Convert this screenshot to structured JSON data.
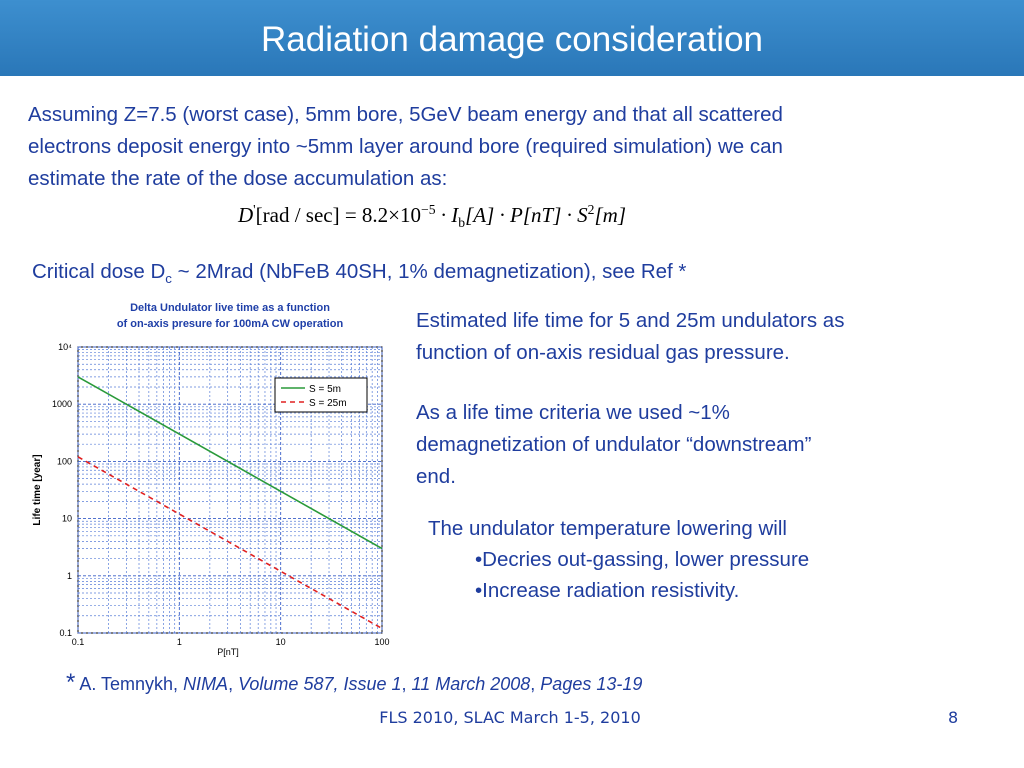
{
  "slide": {
    "title": "Radiation damage consideration",
    "intro": [
      "Assuming Z=7.5 (worst case), 5mm bore, 5GeV beam energy and that all scattered",
      "electrons deposit  energy into ~5mm layer around bore (required simulation) we can",
      "estimate the rate of the dose accumulation as:"
    ],
    "formula": [
      "D",
      "'",
      "[rad / sec] = 8.2×10",
      "−5",
      " · I",
      "b",
      "[A] · P[nT] · S",
      "2",
      "[m]"
    ],
    "critical_dose": [
      "Critical dose D",
      "c",
      " ~ 2Mrad (NbFeB 40SH, 1% demagnetization), see Ref *"
    ],
    "paragraph_1": [
      "Estimated life time for 5 and 25m undulators as",
      "function of on-axis residual gas pressure."
    ],
    "paragraph_2": [
      "As a life time criteria we used ~1%",
      "demagnetization of undulator  “downstream”",
      "end."
    ],
    "bullets_intro": "The undulator temperature lowering will",
    "bullets": [
      "•Decries out-gassing, lower pressure",
      "•Increase radiation resistivity."
    ],
    "reference": [
      "*",
      " A. Temnykh, ",
      "NIMA",
      ", ",
      "Volume 587, Issue 1",
      ", ",
      "11 March 2008",
      ", ",
      "Pages 13-19"
    ],
    "footer": "FLS 2010, SLAC March 1-5, 2010",
    "page_number": "8"
  },
  "chart_data": {
    "type": "line",
    "title": [
      "Delta Undulator live time as a function",
      "of on-axis presure for 100mA CW operation"
    ],
    "x_label": "P[nT]",
    "y_label": "Life time [year]",
    "x": [
      0.1,
      1,
      10,
      100
    ],
    "series": [
      {
        "name": "S = 5m",
        "color": "#2a9a3a",
        "dash": false,
        "values": [
          3000,
          300,
          30,
          3
        ]
      },
      {
        "name": "S = 25m",
        "color": "#e02020",
        "dash": true,
        "values": [
          120,
          12,
          1.2,
          0.12
        ]
      }
    ],
    "xlim": [
      0.1,
      100
    ],
    "ylim": [
      0.1,
      10000
    ],
    "xticks": [
      0.1,
      1,
      10,
      100
    ],
    "yticks": [
      0.1,
      1,
      10,
      100,
      1000,
      {
        "value": 10000,
        "label": "10⁴"
      }
    ],
    "log_x": true,
    "log_y": true,
    "grid": true,
    "legend": "upper right"
  }
}
